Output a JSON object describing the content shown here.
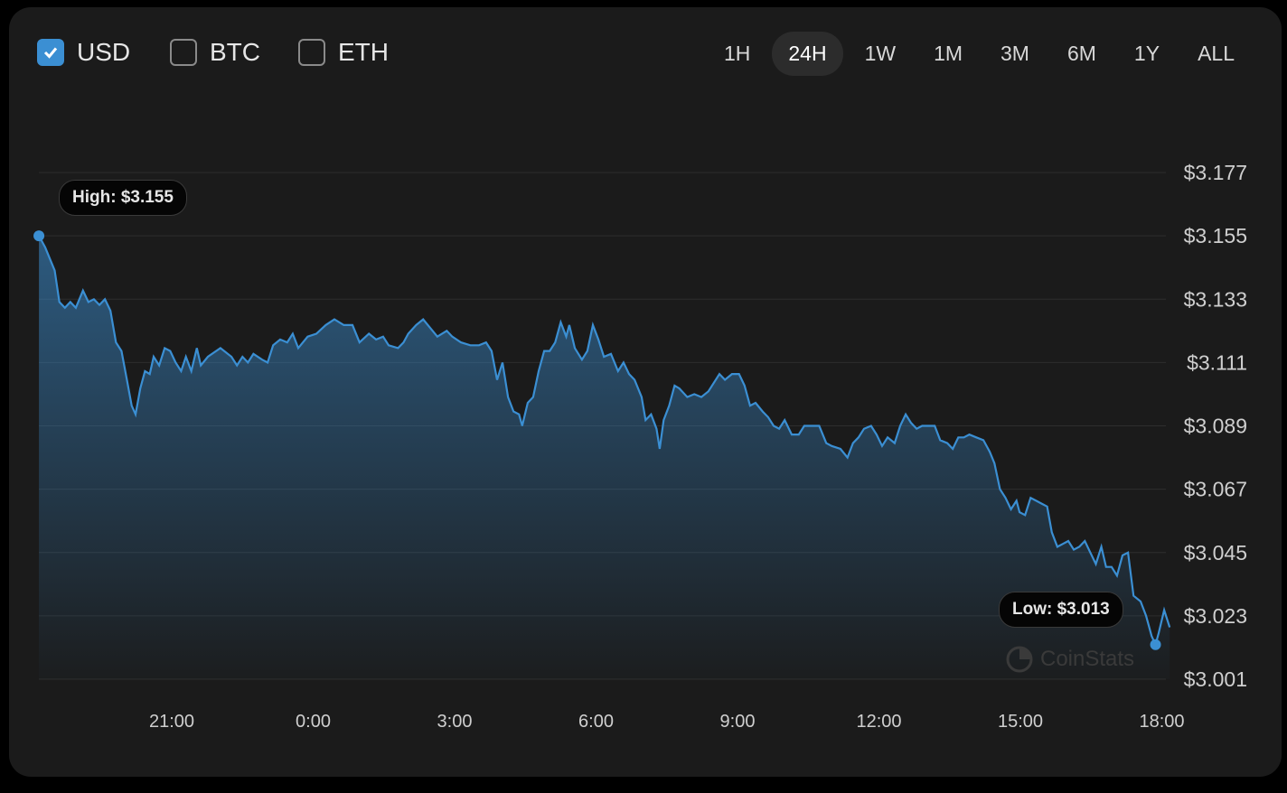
{
  "currencies": [
    {
      "label": "USD",
      "checked": true
    },
    {
      "label": "BTC",
      "checked": false
    },
    {
      "label": "ETH",
      "checked": false
    }
  ],
  "ranges": [
    {
      "label": "1H"
    },
    {
      "label": "24H",
      "active": true
    },
    {
      "label": "1W"
    },
    {
      "label": "1M"
    },
    {
      "label": "3M"
    },
    {
      "label": "6M"
    },
    {
      "label": "1Y"
    },
    {
      "label": "ALL"
    }
  ],
  "colors": {
    "line": "#3b8fd3",
    "accent": "#3b8fd3",
    "background": "#1b1b1b"
  },
  "high_label": "High: $3.155",
  "low_label": "Low: $3.013",
  "watermark": "CoinStats",
  "chart_data": {
    "type": "area",
    "grid": true,
    "ylim": [
      3.001,
      3.177
    ],
    "y_ticks": [
      "$3.177",
      "$3.155",
      "$3.133",
      "$3.111",
      "$3.089",
      "$3.067",
      "$3.045",
      "$3.023",
      "$3.001"
    ],
    "x_ticks": [
      "21:00",
      "0:00",
      "3:00",
      "6:00",
      "9:00",
      "12:00",
      "15:00",
      "18:00"
    ],
    "x": [
      "18:11",
      "18:19",
      "18:31",
      "18:37",
      "18:44",
      "18:51",
      "18:58",
      "19:07",
      "19:14",
      "19:21",
      "19:28",
      "19:35",
      "19:42",
      "19:49",
      "19:56",
      "20:03",
      "20:09",
      "20:14",
      "20:20",
      "20:26",
      "20:32",
      "20:37",
      "20:44",
      "20:51",
      "20:58",
      "21:05",
      "21:12",
      "21:18",
      "21:25",
      "21:32",
      "21:37",
      "21:46",
      "22:02",
      "22:16",
      "22:23",
      "22:30",
      "22:37",
      "22:44",
      "22:55",
      "23:02",
      "23:09",
      "23:18",
      "23:27",
      "23:34",
      "23:41",
      "23:53",
      "0:04",
      "0:16",
      "0:27",
      "0:39",
      "0:50",
      "0:59",
      "1:11",
      "1:20",
      "1:29",
      "1:36",
      "1:48",
      "1:55",
      "2:01",
      "2:11",
      "2:20",
      "2:29",
      "2:38",
      "2:50",
      "2:57",
      "3:08",
      "3:20",
      "3:31",
      "3:40",
      "3:47",
      "3:54",
      "4:01",
      "4:08",
      "4:15",
      "4:22",
      "4:26",
      "4:33",
      "4:40",
      "4:47",
      "4:54",
      "5:01",
      "5:08",
      "5:15",
      "5:22",
      "5:26",
      "5:33",
      "5:42",
      "5:49",
      "5:56",
      "6:03",
      "6:10",
      "6:19",
      "6:28",
      "6:35",
      "6:42",
      "6:49",
      "6:58",
      "7:03",
      "7:10",
      "7:17",
      "7:21",
      "7:26",
      "7:33",
      "7:40",
      "7:46",
      "7:56",
      "8:05",
      "8:14",
      "8:23",
      "8:37",
      "8:44",
      "8:53",
      "9:02",
      "9:09",
      "9:16",
      "9:23",
      "9:32",
      "9:39",
      "9:46",
      "9:53",
      "10:00",
      "10:09",
      "10:18",
      "10:25",
      "10:34",
      "10:44",
      "10:53",
      "11:00",
      "11:11",
      "11:20",
      "11:27",
      "11:34",
      "11:41",
      "11:50",
      "11:57",
      "12:04",
      "12:11",
      "12:20",
      "12:27",
      "12:34",
      "12:41",
      "12:48",
      "12:55",
      "13:11",
      "13:18",
      "13:27",
      "13:34",
      "13:41",
      "13:48",
      "13:55",
      "14:04",
      "14:13",
      "14:21",
      "14:27",
      "14:34",
      "14:41",
      "14:48",
      "14:55",
      "14:59",
      "15:06",
      "15:13",
      "15:20",
      "15:27",
      "15:34",
      "15:40",
      "15:47",
      "15:54",
      "16:01",
      "16:08",
      "16:15",
      "16:22",
      "16:29",
      "16:36",
      "16:43",
      "16:49",
      "16:56",
      "17:03",
      "17:10",
      "17:17",
      "17:24",
      "17:33",
      "17:40",
      "17:47",
      "17:52",
      "17:56",
      "18:03",
      "18:10"
    ],
    "y": [
      3.155,
      3.151,
      3.143,
      3.132,
      3.13,
      3.132,
      3.13,
      3.136,
      3.132,
      3.133,
      3.131,
      3.133,
      3.129,
      3.118,
      3.115,
      3.105,
      3.096,
      3.093,
      3.102,
      3.108,
      3.107,
      3.113,
      3.11,
      3.116,
      3.115,
      3.111,
      3.108,
      3.113,
      3.108,
      3.116,
      3.11,
      3.113,
      3.116,
      3.113,
      3.11,
      3.113,
      3.111,
      3.114,
      3.112,
      3.111,
      3.117,
      3.119,
      3.118,
      3.121,
      3.116,
      3.12,
      3.121,
      3.124,
      3.126,
      3.124,
      3.124,
      3.118,
      3.121,
      3.119,
      3.12,
      3.117,
      3.116,
      3.118,
      3.121,
      3.124,
      3.126,
      3.123,
      3.12,
      3.122,
      3.12,
      3.118,
      3.117,
      3.117,
      3.118,
      3.115,
      3.105,
      3.111,
      3.099,
      3.094,
      3.093,
      3.089,
      3.097,
      3.099,
      3.108,
      3.115,
      3.115,
      3.118,
      3.125,
      3.12,
      3.124,
      3.116,
      3.112,
      3.115,
      3.124,
      3.119,
      3.113,
      3.114,
      3.108,
      3.111,
      3.107,
      3.105,
      3.099,
      3.091,
      3.093,
      3.088,
      3.081,
      3.091,
      3.096,
      3.103,
      3.102,
      3.099,
      3.1,
      3.099,
      3.101,
      3.107,
      3.105,
      3.107,
      3.107,
      3.103,
      3.096,
      3.097,
      3.094,
      3.092,
      3.089,
      3.088,
      3.091,
      3.086,
      3.086,
      3.089,
      3.089,
      3.089,
      3.083,
      3.082,
      3.081,
      3.078,
      3.083,
      3.085,
      3.088,
      3.089,
      3.086,
      3.082,
      3.085,
      3.083,
      3.089,
      3.093,
      3.09,
      3.088,
      3.089,
      3.089,
      3.084,
      3.083,
      3.081,
      3.085,
      3.085,
      3.086,
      3.085,
      3.084,
      3.08,
      3.076,
      3.067,
      3.064,
      3.06,
      3.063,
      3.059,
      3.058,
      3.064,
      3.063,
      3.062,
      3.061,
      3.052,
      3.047,
      3.048,
      3.049,
      3.046,
      3.047,
      3.049,
      3.045,
      3.041,
      3.047,
      3.04,
      3.04,
      3.037,
      3.044,
      3.045,
      3.03,
      3.028,
      3.023,
      3.016,
      3.013,
      3.017,
      3.025,
      3.019
    ],
    "high": {
      "time": "18:11",
      "value": 3.155
    },
    "low": {
      "time": "17:52",
      "value": 3.013
    }
  }
}
